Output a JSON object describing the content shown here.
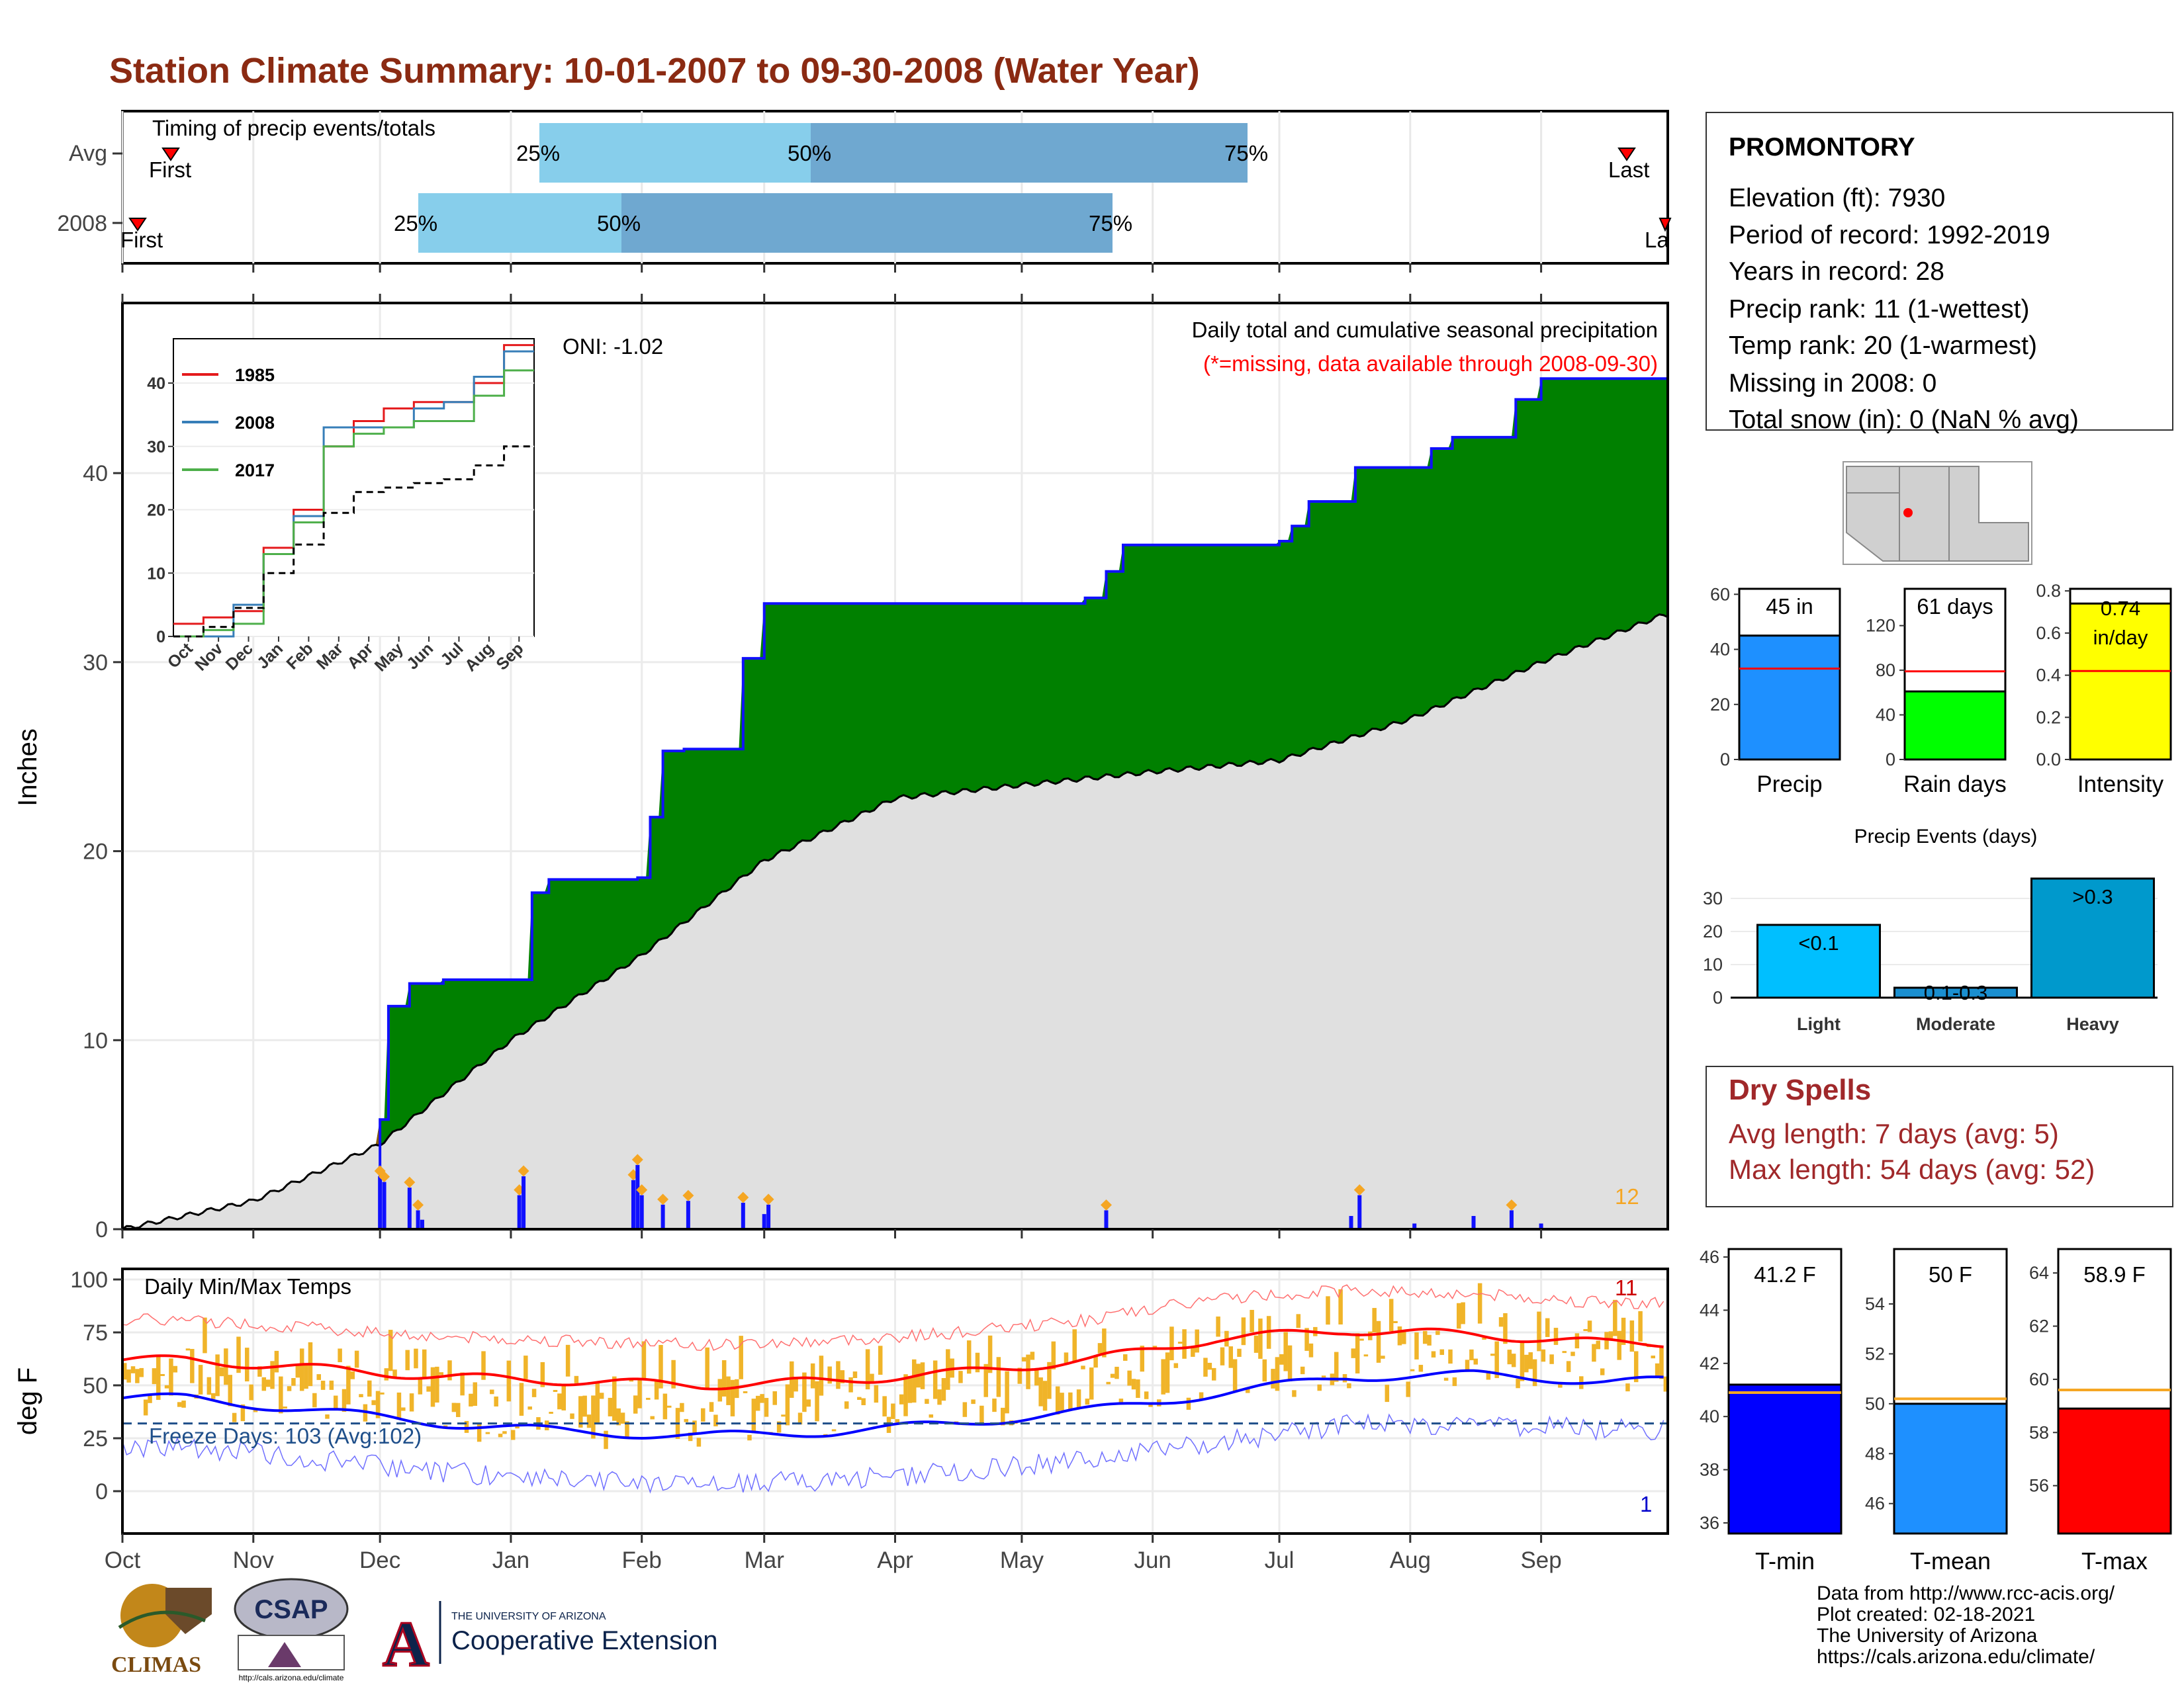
{
  "title": "Station Climate Summary: 10-01-2007 to 09-30-2008 (Water Year)",
  "colors": {
    "title": "#8b2a12",
    "green": "#008000",
    "brown": "#8b5a00",
    "gray": "#e0e0e0",
    "blue": "#1010ff",
    "orange": "#f5a623",
    "red": "#ff0000",
    "light_blue": "#87ceeb",
    "mid_blue": "#6fa8d0",
    "dry_spells": "#a0282a"
  },
  "timing": {
    "label": "Timing of precip events/totals",
    "rows": [
      {
        "name": "Avg",
        "first": "First",
        "last": "Last",
        "p25": "25%",
        "p50": "50%",
        "p75": "75%"
      },
      {
        "name": "2008",
        "first": "First",
        "last": "La",
        "p25": "25%",
        "p50": "50%",
        "p75": "75%"
      }
    ]
  },
  "main_chart": {
    "ylabel": "Inches",
    "annotation_title": "Daily total and cumulative seasonal precipitation",
    "annotation_missing": "(*=missing, data available through 2008-09-30)",
    "oni": "ONI: -1.02",
    "count_label": "12",
    "yticks": [
      "0",
      "10",
      "20",
      "30",
      "40"
    ]
  },
  "temp_chart": {
    "ylabel": "deg F",
    "title": "Daily Min/Max Temps",
    "freeze": "Freeze Days: 103 (Avg:102)",
    "top_count": "11",
    "bottom_count": "1",
    "yticks": [
      "0",
      "25",
      "50",
      "75",
      "100"
    ],
    "months": [
      "Oct",
      "Nov",
      "Dec",
      "Jan",
      "Feb",
      "Mar",
      "Apr",
      "May",
      "Jun",
      "Jul",
      "Aug",
      "Sep"
    ]
  },
  "inset": {
    "legend": [
      "1985",
      "2008",
      "2017"
    ],
    "yticks": [
      "0",
      "10",
      "20",
      "30",
      "40"
    ],
    "months": [
      "Oct",
      "Nov",
      "Dec",
      "Jan",
      "Feb",
      "Mar",
      "Apr",
      "May",
      "Jun",
      "Jul",
      "Aug",
      "Sep"
    ]
  },
  "station": {
    "name": "PROMONTORY",
    "lines": [
      "Elevation (ft): 7930",
      "Period of record: 1992-2019",
      "Years in record: 28",
      "Precip rank: 11 (1-wettest)",
      "Temp rank: 20 (1-warmest)",
      "Missing in 2008: 0",
      "Total snow (in): 0 (NaN % avg)"
    ]
  },
  "mini_bars": [
    {
      "label": "Precip",
      "value_text": "45 in",
      "value": 45,
      "avg": 33,
      "ymax": 62,
      "ticks": [
        "0",
        "20",
        "40",
        "60"
      ],
      "color": "#1e90ff"
    },
    {
      "label": "Rain days",
      "value_text": "61 days",
      "value": 61,
      "avg": 79,
      "ymax": 153,
      "ticks": [
        "0",
        "40",
        "80",
        "120"
      ],
      "color": "#00ff00"
    },
    {
      "label": "Intensity",
      "value_text": "0.74 in/day",
      "value": 0.74,
      "avg": 0.42,
      "ymax": 0.81,
      "ticks": [
        "0.0",
        "0.2",
        "0.4",
        "0.6",
        "0.8"
      ],
      "color": "#ffff00"
    }
  ],
  "events": {
    "title": "Precip Events (days)",
    "categories": [
      "Light",
      "Moderate",
      "Heavy"
    ],
    "values": [
      22,
      3,
      36
    ],
    "labels": [
      "<0.1",
      "0.1-0.3",
      ">0.3"
    ],
    "ticks": [
      "0",
      "10",
      "20",
      "30"
    ]
  },
  "dry_spells": {
    "title": "Dry Spells",
    "avg": "Avg length: 7 days (avg: 5)",
    "max": "Max length: 54 days (avg: 52)"
  },
  "temp_bars": [
    {
      "label": "T-min",
      "value_text": "41.2 F",
      "value": 41.2,
      "avg": 40.9,
      "ymin": 35.6,
      "ymax": 46.3,
      "ticks": [
        "36",
        "38",
        "40",
        "42",
        "44",
        "46"
      ],
      "color": "#0000ff"
    },
    {
      "label": "T-mean",
      "value_text": "50 F",
      "value": 50.0,
      "avg": 50.2,
      "ymin": 44.8,
      "ymax": 56.2,
      "ticks": [
        "46",
        "48",
        "50",
        "52",
        "54"
      ],
      "color": "#1e90ff"
    },
    {
      "label": "T-max",
      "value_text": "58.9 F",
      "value": 58.9,
      "avg": 59.6,
      "ymin": 54.2,
      "ymax": 64.9,
      "ticks": [
        "56",
        "58",
        "60",
        "62",
        "64"
      ],
      "color": "#ff0000"
    }
  ],
  "footer": {
    "lines": [
      "Data from http://www.rcc-acis.org/",
      "Plot created: 02-18-2021",
      "The University of Arizona",
      "https://cals.arizona.edu/climate/"
    ],
    "climas": "CLIMAS",
    "csap": "CSAP",
    "csap_url": "http://cals.arizona.edu/climate",
    "ua_small": "THE UNIVERSITY OF ARIZONA",
    "ua_big": "Cooperative Extension",
    "ua_letter": "A"
  },
  "chart_data": [
    {
      "type": "area",
      "title": "Daily total and cumulative seasonal precipitation",
      "ylabel": "Inches",
      "ylim": [
        0,
        49
      ],
      "cumulative_2008": {
        "x": [
          "2007-10-01",
          "2007-12-01",
          "2007-12-03",
          "2007-12-08",
          "2007-12-16",
          "2008-01-06",
          "2008-01-10",
          "2008-01-31",
          "2008-02-03",
          "2008-02-06",
          "2008-02-11",
          "2008-02-25",
          "2008-03-01",
          "2008-05-16",
          "2008-05-21",
          "2008-05-25",
          "2008-07-01",
          "2008-07-04",
          "2008-07-08",
          "2008-07-19",
          "2008-08-06",
          "2008-08-11",
          "2008-08-26",
          "2008-09-01",
          "2008-09-30"
        ],
        "values": [
          0.0,
          5.8,
          11.8,
          13.0,
          13.2,
          17.8,
          18.5,
          18.6,
          21.8,
          25.3,
          25.4,
          30.2,
          33.1,
          33.4,
          34.8,
          36.2,
          36.4,
          37.2,
          38.5,
          40.3,
          41.3,
          41.9,
          43.9,
          45.0,
          45.0
        ]
      },
      "cumulative_avg": {
        "x": [
          "2007-10-01",
          "2007-11-01",
          "2007-12-01",
          "2008-01-01",
          "2008-02-01",
          "2008-03-01",
          "2008-04-01",
          "2008-05-01",
          "2008-06-01",
          "2008-07-01",
          "2008-08-01",
          "2008-09-01",
          "2008-09-30"
        ],
        "values": [
          0.0,
          1.5,
          4.5,
          10.0,
          14.5,
          19.5,
          22.8,
          23.5,
          24.2,
          24.8,
          27.0,
          30.0,
          32.5
        ]
      },
      "daily_precip": {
        "x": [
          "2007-12-01",
          "2007-12-02",
          "2007-12-08",
          "2007-12-10",
          "2007-12-11",
          "2008-01-03",
          "2008-01-04",
          "2008-01-30",
          "2008-01-31",
          "2008-02-01",
          "2008-02-06",
          "2008-02-12",
          "2008-02-25",
          "2008-03-01",
          "2008-03-02",
          "2008-05-21",
          "2008-07-18",
          "2008-07-20",
          "2008-08-02",
          "2008-08-16",
          "2008-08-25",
          "2008-09-01"
        ],
        "values": [
          2.8,
          2.5,
          2.2,
          1.0,
          0.5,
          1.8,
          2.8,
          2.6,
          3.4,
          1.8,
          1.3,
          1.5,
          1.4,
          0.8,
          1.3,
          1.0,
          0.7,
          1.8,
          0.3,
          0.7,
          1.0,
          0.3
        ]
      }
    },
    {
      "type": "line",
      "title": "Daily Min/Max Temps",
      "ylabel": "deg F",
      "ylim": [
        -20,
        105
      ],
      "avg_tmax": {
        "x": [
          "Oct",
          "Nov",
          "Dec",
          "Jan",
          "Feb",
          "Mar",
          "Apr",
          "May",
          "Jun",
          "Jul",
          "Aug",
          "Sep"
        ],
        "values": [
          62,
          58,
          54,
          52,
          50,
          52,
          56,
          62,
          72,
          76,
          74,
          70
        ]
      },
      "avg_tmin": {
        "x": [
          "Oct",
          "Nov",
          "Dec",
          "Jan",
          "Feb",
          "Mar",
          "Apr",
          "May",
          "Jun",
          "Jul",
          "Aug",
          "Sep"
        ],
        "values": [
          44,
          38,
          32,
          28,
          26,
          28,
          32,
          38,
          46,
          54,
          55,
          52
        ]
      },
      "freeze_line": 32
    },
    {
      "type": "line",
      "title": "",
      "series": [
        {
          "name": "1985",
          "values": [
            2,
            3,
            4,
            14,
            20,
            30,
            34,
            36,
            37,
            37,
            40,
            46
          ]
        },
        {
          "name": "2008",
          "values": [
            0,
            0,
            5,
            13,
            19,
            33,
            33,
            33,
            36,
            37,
            41,
            45
          ]
        },
        {
          "name": "2017",
          "values": [
            0,
            1,
            2,
            13,
            18,
            30,
            32,
            33,
            34,
            34,
            38,
            42
          ]
        },
        {
          "name": "",
          "values": [
            0,
            1.5,
            4.5,
            10,
            14.5,
            19.5,
            22.8,
            23.5,
            24.2,
            24.8,
            27,
            30
          ]
        }
      ],
      "categories": [
        "Oct",
        "Nov",
        "Dec",
        "Jan",
        "Feb",
        "Mar",
        "Apr",
        "May",
        "Jun",
        "Jul",
        "Aug",
        "Sep"
      ],
      "ylim": [
        0,
        47
      ]
    },
    {
      "type": "bar",
      "title": "Precip Events (days)",
      "categories": [
        "Light",
        "Moderate",
        "Heavy"
      ],
      "values": [
        22,
        3,
        36
      ]
    }
  ]
}
